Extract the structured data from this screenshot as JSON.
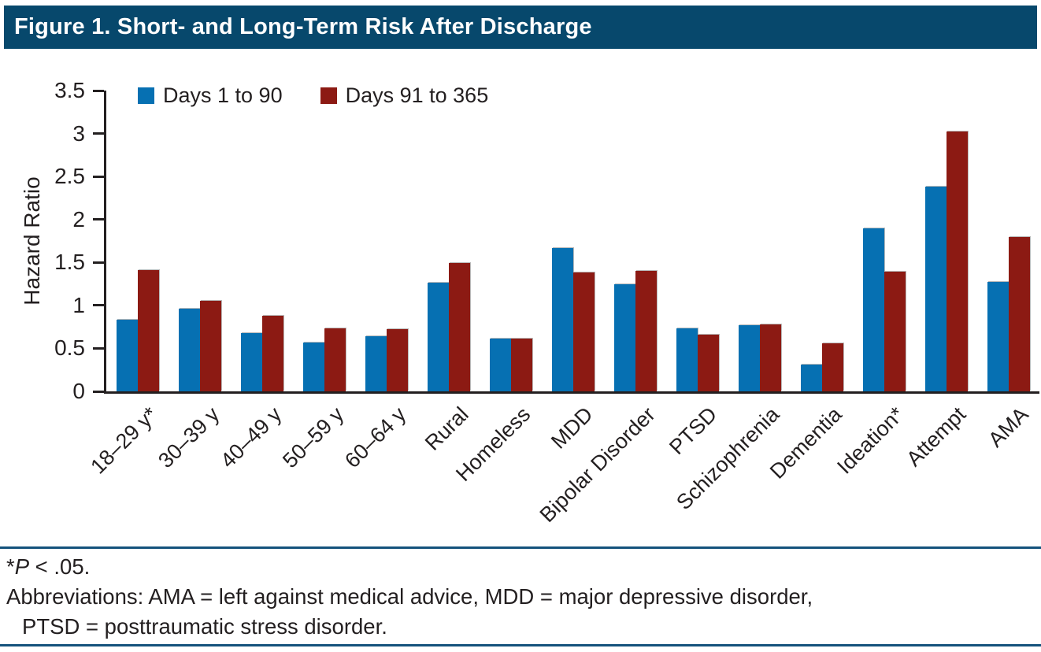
{
  "title": "Figure 1. Short- and Long-Term Risk After Discharge",
  "colors": {
    "title_bar": "#07486c",
    "series1_blue": "#0670b2",
    "series2_red": "#8c1a13",
    "rule_blue": "#14527c",
    "axis_text": "#231f20"
  },
  "chart_data": {
    "type": "bar",
    "title": "Figure 1. Short- and Long-Term Risk After Discharge",
    "ylabel": "Hazard Ratio",
    "xlabel": "",
    "ylim": [
      0,
      3.5
    ],
    "yticks": [
      0,
      0.5,
      1,
      1.5,
      2,
      2.5,
      3,
      3.5
    ],
    "grid": false,
    "legend_position": "top-left",
    "categories": [
      "18–29 y*",
      "30–39 y",
      "40–49 y",
      "50–59 y",
      "60–64 y",
      "Rural",
      "Homeless",
      "MDD",
      "Bipolar Disorder",
      "PTSD",
      "Schizophrenia",
      "Dementia",
      "Ideation*",
      "Attempt",
      "AMA"
    ],
    "series": [
      {
        "name": "Days 1 to 90",
        "color": "#0670b2",
        "values": [
          0.83,
          0.96,
          0.68,
          0.57,
          0.64,
          1.26,
          0.61,
          1.67,
          1.25,
          0.73,
          0.77,
          0.31,
          1.9,
          2.38,
          1.27
        ]
      },
      {
        "name": "Days 91 to 365",
        "color": "#8c1a13",
        "values": [
          1.41,
          1.05,
          0.88,
          0.73,
          0.72,
          1.49,
          0.61,
          1.38,
          1.4,
          0.66,
          0.78,
          0.56,
          1.39,
          3.02,
          1.8
        ]
      }
    ]
  },
  "footnotes": {
    "sig_prefix": "*",
    "sig_italic": "P",
    "sig_suffix": " < .05.",
    "abbr_line1": "Abbreviations: AMA = left against medical advice, MDD = major depressive disorder,",
    "abbr_line2": "PTSD = posttraumatic stress disorder."
  }
}
